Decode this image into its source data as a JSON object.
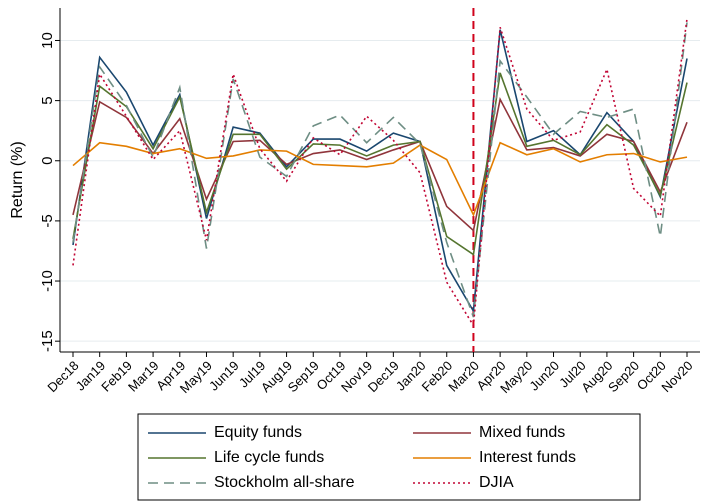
{
  "chart_data": {
    "type": "line",
    "ylabel": "Return (%)",
    "categories": [
      "Dec18",
      "Jan19",
      "Feb19",
      "Mar19",
      "Apr19",
      "May19",
      "Jun19",
      "Jul19",
      "Aug19",
      "Sep19",
      "Oct19",
      "Nov19",
      "Dec19",
      "Jan20",
      "Feb20",
      "Mar20",
      "Apr20",
      "May20",
      "Jun20",
      "Jul20",
      "Aug20",
      "Sep20",
      "Oct20",
      "Nov20"
    ],
    "series": [
      {
        "name": "Equity funds",
        "color": "#1a476f",
        "dash": "solid",
        "values": [
          -7,
          8.6,
          5.7,
          1.3,
          5.5,
          -4.8,
          2.8,
          2.3,
          -0.5,
          1.8,
          1.8,
          0.8,
          2.3,
          1.6,
          -8.7,
          -12.5,
          10.9,
          1.6,
          2.5,
          0.5,
          4.0,
          1.6,
          -3.0,
          8.5
        ]
      },
      {
        "name": "Mixed funds",
        "color": "#90353b",
        "dash": "solid",
        "values": [
          -4.5,
          4.9,
          3.6,
          0.6,
          3.5,
          -3.2,
          1.6,
          1.7,
          -0.3,
          0.6,
          0.9,
          0.1,
          0.9,
          1.6,
          -3.8,
          -5.8,
          5.1,
          0.9,
          1.1,
          0.4,
          2.2,
          1.6,
          -2.6,
          3.2
        ]
      },
      {
        "name": "Life cycle funds",
        "color": "#55752f",
        "dash": "solid",
        "values": [
          -6.5,
          6.2,
          4.5,
          1.0,
          5.3,
          -4.3,
          2.2,
          2.2,
          -0.7,
          1.4,
          1.3,
          0.4,
          1.3,
          1.6,
          -6.3,
          -7.8,
          7.3,
          1.2,
          1.7,
          0.5,
          3.0,
          1.3,
          -2.9,
          6.5
        ]
      },
      {
        "name": "Interest funds",
        "color": "#e37e00",
        "dash": "solid",
        "values": [
          -0.4,
          1.5,
          1.2,
          0.6,
          1.0,
          0.2,
          0.4,
          0.9,
          0.8,
          -0.3,
          -0.4,
          -0.5,
          -0.2,
          1.3,
          0.1,
          -4.5,
          1.5,
          0.5,
          1.0,
          -0.1,
          0.5,
          0.6,
          -0.1,
          0.3
        ]
      },
      {
        "name": "Stockholm all-share",
        "color": "#6e8e84",
        "dash": "dashed",
        "values": [
          -6.8,
          7.8,
          4.6,
          0.3,
          6.1,
          -7.3,
          6.8,
          0.3,
          -1.3,
          2.9,
          3.8,
          1.5,
          3.6,
          1.4,
          -6.8,
          -13.0,
          8.3,
          5.3,
          2.2,
          4.1,
          3.6,
          4.3,
          -6.3,
          11.5
        ]
      },
      {
        "name": "DJIA",
        "color": "#c10534",
        "dash": "dotted",
        "values": [
          -8.7,
          7.2,
          3.7,
          0.1,
          2.5,
          -6.6,
          7.2,
          1.0,
          -1.7,
          1.9,
          0.5,
          3.7,
          1.7,
          -1.0,
          -10.1,
          -13.7,
          11.1,
          4.3,
          1.7,
          2.4,
          7.6,
          -2.3,
          -4.6,
          11.8
        ]
      }
    ],
    "ylim": [
      -15.9,
      12.7
    ],
    "yticks": [
      -15,
      -10,
      -5,
      0,
      5,
      10
    ],
    "grid": true,
    "reference_line": {
      "category": "Mar20",
      "color": "#d0021b"
    },
    "legend": "bottom"
  }
}
